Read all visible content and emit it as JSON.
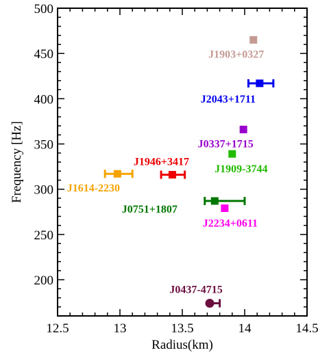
{
  "chart_data": {
    "type": "scatter",
    "title": "",
    "xlabel": "Radius(km)",
    "ylabel": "Frequency [Hz]",
    "xlim": [
      12.5,
      14.5
    ],
    "ylim": [
      160,
      500
    ],
    "x_ticks": [
      12.5,
      13,
      13.5,
      14,
      14.5
    ],
    "x_tick_labels": [
      "12.5",
      "13",
      "13.5",
      "14",
      "14.5"
    ],
    "y_ticks": [
      200,
      250,
      300,
      350,
      400,
      450,
      500
    ],
    "y_tick_labels": [
      "200",
      "250",
      "300",
      "350",
      "400",
      "450",
      "500"
    ],
    "grid": false,
    "legend": "none",
    "points": [
      {
        "label": "J1903+0327",
        "x": 14.07,
        "y": 465,
        "xerr_low": null,
        "xerr_high": null,
        "marker": "square",
        "color": "#c49a94"
      },
      {
        "label": "J2043+1711",
        "x": 14.12,
        "y": 417,
        "xerr_low": 14.03,
        "xerr_high": 14.23,
        "marker": "square",
        "color": "#0000ee"
      },
      {
        "label": "J0337+1715",
        "x": 13.99,
        "y": 366,
        "xerr_low": null,
        "xerr_high": null,
        "marker": "square",
        "color": "#9900cc"
      },
      {
        "label": "J1909-3744",
        "x": 13.9,
        "y": 339,
        "xerr_low": null,
        "xerr_high": null,
        "marker": "square",
        "color": "#22bb00"
      },
      {
        "label": "J1946+3417",
        "x": 13.42,
        "y": 316,
        "xerr_low": 13.33,
        "xerr_high": 13.52,
        "marker": "square",
        "color": "#ee0000"
      },
      {
        "label": "J1614-2230",
        "x": 12.98,
        "y": 317,
        "xerr_low": 12.88,
        "xerr_high": 13.1,
        "marker": "square",
        "color": "#f5a300"
      },
      {
        "label": "J0751+1807",
        "x": 13.76,
        "y": 287,
        "xerr_low": 13.68,
        "xerr_high": 14.0,
        "marker": "square",
        "color": "#007700"
      },
      {
        "label": "J2234+0611",
        "x": 13.84,
        "y": 279,
        "xerr_low": null,
        "xerr_high": null,
        "marker": "square",
        "color": "#ff00ee"
      },
      {
        "label": "J0437-4715",
        "x": 13.72,
        "y": 174,
        "xerr_low": null,
        "xerr_high": 13.8,
        "marker": "circle",
        "color": "#6b0f3f"
      }
    ]
  }
}
